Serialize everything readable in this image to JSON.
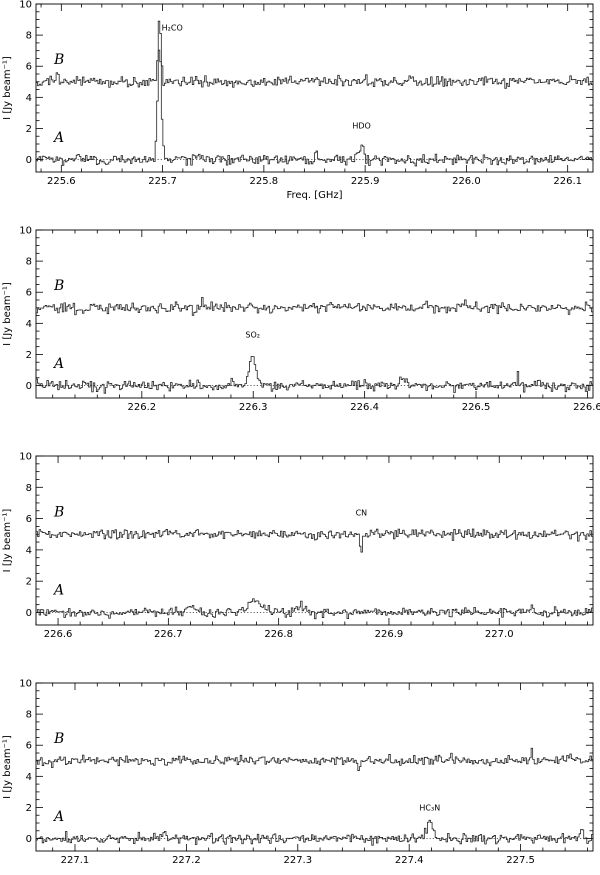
{
  "chart_data": [
    {
      "type": "line",
      "xlim": [
        225.575,
        226.125
      ],
      "ylim": [
        -0.8,
        10
      ],
      "xticks": [
        225.6,
        225.7,
        225.8,
        225.9,
        226.0,
        226.1
      ],
      "xtick_labels": [
        "225.6",
        "225.7",
        "225.8",
        "225.9",
        "226.0",
        "226.1"
      ],
      "yticks": [
        0,
        2,
        4,
        6,
        8,
        10
      ],
      "ytick_labels": [
        "0",
        "2",
        "4",
        "6",
        "8",
        "10"
      ],
      "ylabel": "I [Jy beam⁻¹]",
      "xlabel": "Freq. [GHz]",
      "grid": false,
      "series": [
        {
          "name": "A",
          "baseline": 0,
          "noise": 0.16,
          "features": [
            {
              "x": 225.697,
              "amp": 7.2,
              "width": 0.0018
            },
            {
              "x": 225.8965,
              "amp": 1.0,
              "width": 0.0022
            },
            {
              "x": 225.852,
              "amp": 0.5,
              "width": 0.0012
            }
          ]
        },
        {
          "name": "B",
          "baseline": 5,
          "noise": 0.16,
          "features": [
            {
              "x": 225.697,
              "amp": 4.0,
              "width": 0.0014
            },
            {
              "x": 225.596,
              "amp": 0.8,
              "width": 0.0008
            }
          ]
        }
      ],
      "annotations": [
        {
          "text": "H₂CO",
          "x": 225.7095,
          "y": 8.3
        },
        {
          "text": "HDO",
          "x": 225.8965,
          "y": 2.0
        }
      ]
    },
    {
      "type": "line",
      "xlim": [
        226.105,
        226.605
      ],
      "ylim": [
        -0.8,
        10
      ],
      "xticks": [
        226.2,
        226.3,
        226.4,
        226.5,
        226.6
      ],
      "xtick_labels": [
        "226.2",
        "226.3",
        "226.4",
        "226.5",
        "226.6"
      ],
      "yticks": [
        0,
        2,
        4,
        6,
        8,
        10
      ],
      "ytick_labels": [
        "0",
        "2",
        "4",
        "6",
        "8",
        "10"
      ],
      "ylabel": "I [Jy beam⁻¹]",
      "xlabel": "",
      "grid": false,
      "series": [
        {
          "name": "A",
          "baseline": 0,
          "noise": 0.16,
          "features": [
            {
              "x": 226.2995,
              "amp": 2.0,
              "width": 0.0028
            },
            {
              "x": 226.435,
              "amp": 0.45,
              "width": 0.003
            },
            {
              "x": 226.538,
              "amp": 0.6,
              "width": 0.0015
            }
          ]
        },
        {
          "name": "B",
          "baseline": 5,
          "noise": 0.16,
          "features": [
            {
              "x": 226.254,
              "amp": 0.7,
              "width": 0.0009
            }
          ]
        }
      ],
      "annotations": [
        {
          "text": "SO₂",
          "x": 226.2995,
          "y": 3.1
        }
      ]
    },
    {
      "type": "line",
      "xlim": [
        226.58,
        227.085
      ],
      "ylim": [
        -0.8,
        10
      ],
      "xticks": [
        226.6,
        226.7,
        226.8,
        226.9,
        227.0
      ],
      "xtick_labels": [
        "226.6",
        "226.7",
        "226.8",
        "226.9",
        "227.0"
      ],
      "yticks": [
        0,
        2,
        4,
        6,
        8,
        10
      ],
      "ytick_labels": [
        "0",
        "2",
        "4",
        "6",
        "8",
        "10"
      ],
      "ylabel": "I [Jy beam⁻¹]",
      "xlabel": "",
      "grid": false,
      "series": [
        {
          "name": "A",
          "baseline": 0,
          "noise": 0.14,
          "features": [
            {
              "x": 226.778,
              "amp": 0.75,
              "width": 0.006
            },
            {
              "x": 226.72,
              "amp": 0.3,
              "width": 0.004
            },
            {
              "x": 226.82,
              "amp": 0.4,
              "width": 0.004
            },
            {
              "x": 227.03,
              "amp": 0.55,
              "width": 0.0015
            }
          ]
        },
        {
          "name": "B",
          "baseline": 5,
          "noise": 0.16,
          "features": [
            {
              "x": 226.875,
              "amp": -1.1,
              "width": 0.0008
            }
          ]
        }
      ],
      "annotations": [
        {
          "text": "CN",
          "x": 226.875,
          "y": 6.2
        }
      ]
    },
    {
      "type": "line",
      "xlim": [
        227.065,
        227.565
      ],
      "ylim": [
        -0.8,
        10
      ],
      "xticks": [
        227.1,
        227.2,
        227.3,
        227.4,
        227.5
      ],
      "xtick_labels": [
        "227.1",
        "227.2",
        "227.3",
        "227.4",
        "227.5"
      ],
      "yticks": [
        0,
        2,
        4,
        6,
        8,
        10
      ],
      "ytick_labels": [
        "0",
        "2",
        "4",
        "6",
        "8",
        "10"
      ],
      "ylabel": "I [Jy beam⁻¹]",
      "xlabel": "",
      "grid": false,
      "series": [
        {
          "name": "A",
          "baseline": 0,
          "noise": 0.15,
          "features": [
            {
              "x": 227.4185,
              "amp": 1.1,
              "width": 0.0022
            },
            {
              "x": 227.18,
              "amp": 0.55,
              "width": 0.0012
            },
            {
              "x": 227.555,
              "amp": 0.5,
              "width": 0.0012
            }
          ]
        },
        {
          "name": "B",
          "baseline": 5,
          "noise": 0.15,
          "features": [
            {
              "x": 227.51,
              "amp": 0.9,
              "width": 0.0008
            },
            {
              "x": 227.355,
              "amp": -0.6,
              "width": 0.0008
            }
          ]
        }
      ],
      "annotations": [
        {
          "text": "HC₃N",
          "x": 227.4185,
          "y": 1.8
        }
      ]
    }
  ]
}
